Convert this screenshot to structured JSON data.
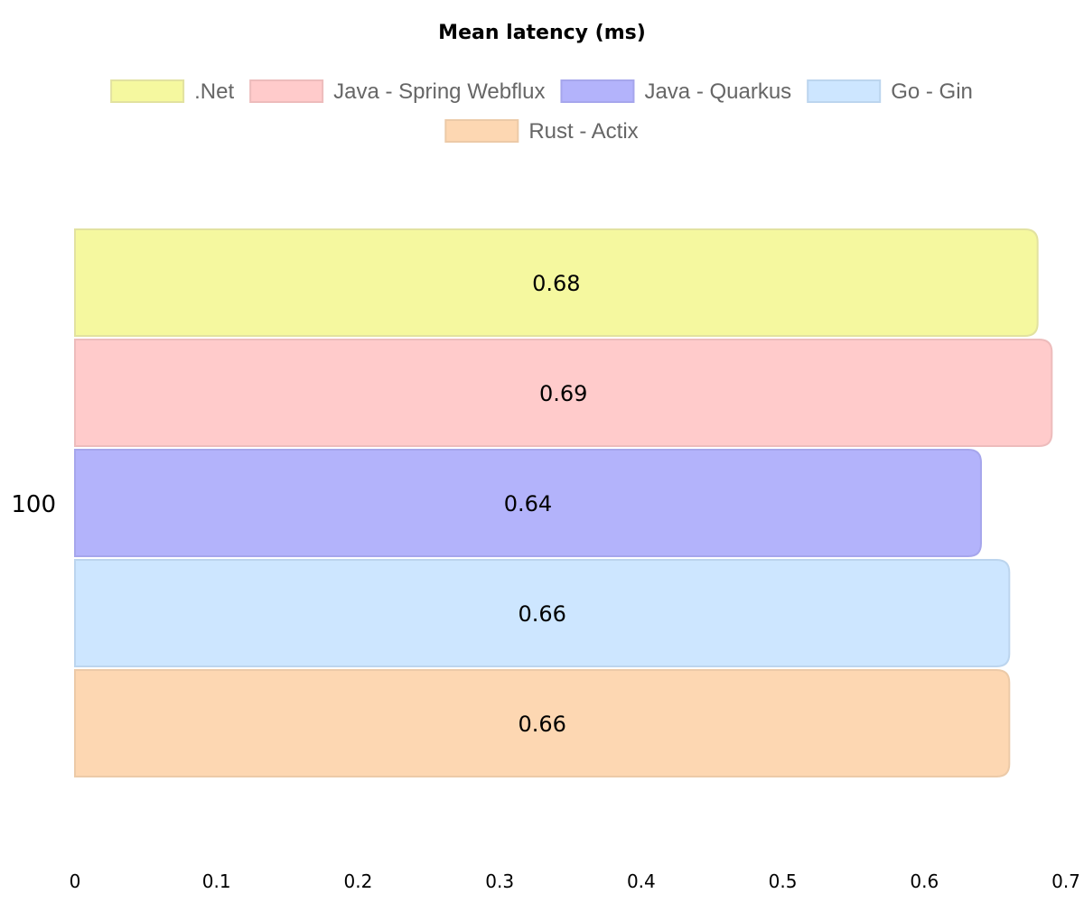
{
  "chart_data": {
    "type": "bar",
    "orientation": "horizontal",
    "title": "Mean latency (ms)",
    "categories": [
      "100"
    ],
    "series": [
      {
        "name": ".Net",
        "values": [
          0.68
        ],
        "color": "#f5f89f",
        "border": "#e2e2a0"
      },
      {
        "name": "Java - Spring Webflux",
        "values": [
          0.69
        ],
        "color": "#ffcbcb",
        "border": "#edbcbc"
      },
      {
        "name": "Java - Quarkus",
        "values": [
          0.64
        ],
        "color": "#b3b3fb",
        "border": "#a6a6ec"
      },
      {
        "name": "Go - Gin",
        "values": [
          0.66
        ],
        "color": "#cde6ff",
        "border": "#bcd5ee"
      },
      {
        "name": "Rust - Actix",
        "values": [
          0.66
        ],
        "color": "#fdd7b2",
        "border": "#eccaa8"
      }
    ],
    "xlim": [
      0,
      0.7
    ],
    "xticks": [
      "0",
      "0.1",
      "0.2",
      "0.3",
      "0.4",
      "0.5",
      "0.6",
      "0.7"
    ],
    "xlabel": "",
    "ylabel": "",
    "grid": false,
    "legend_position": "top"
  }
}
